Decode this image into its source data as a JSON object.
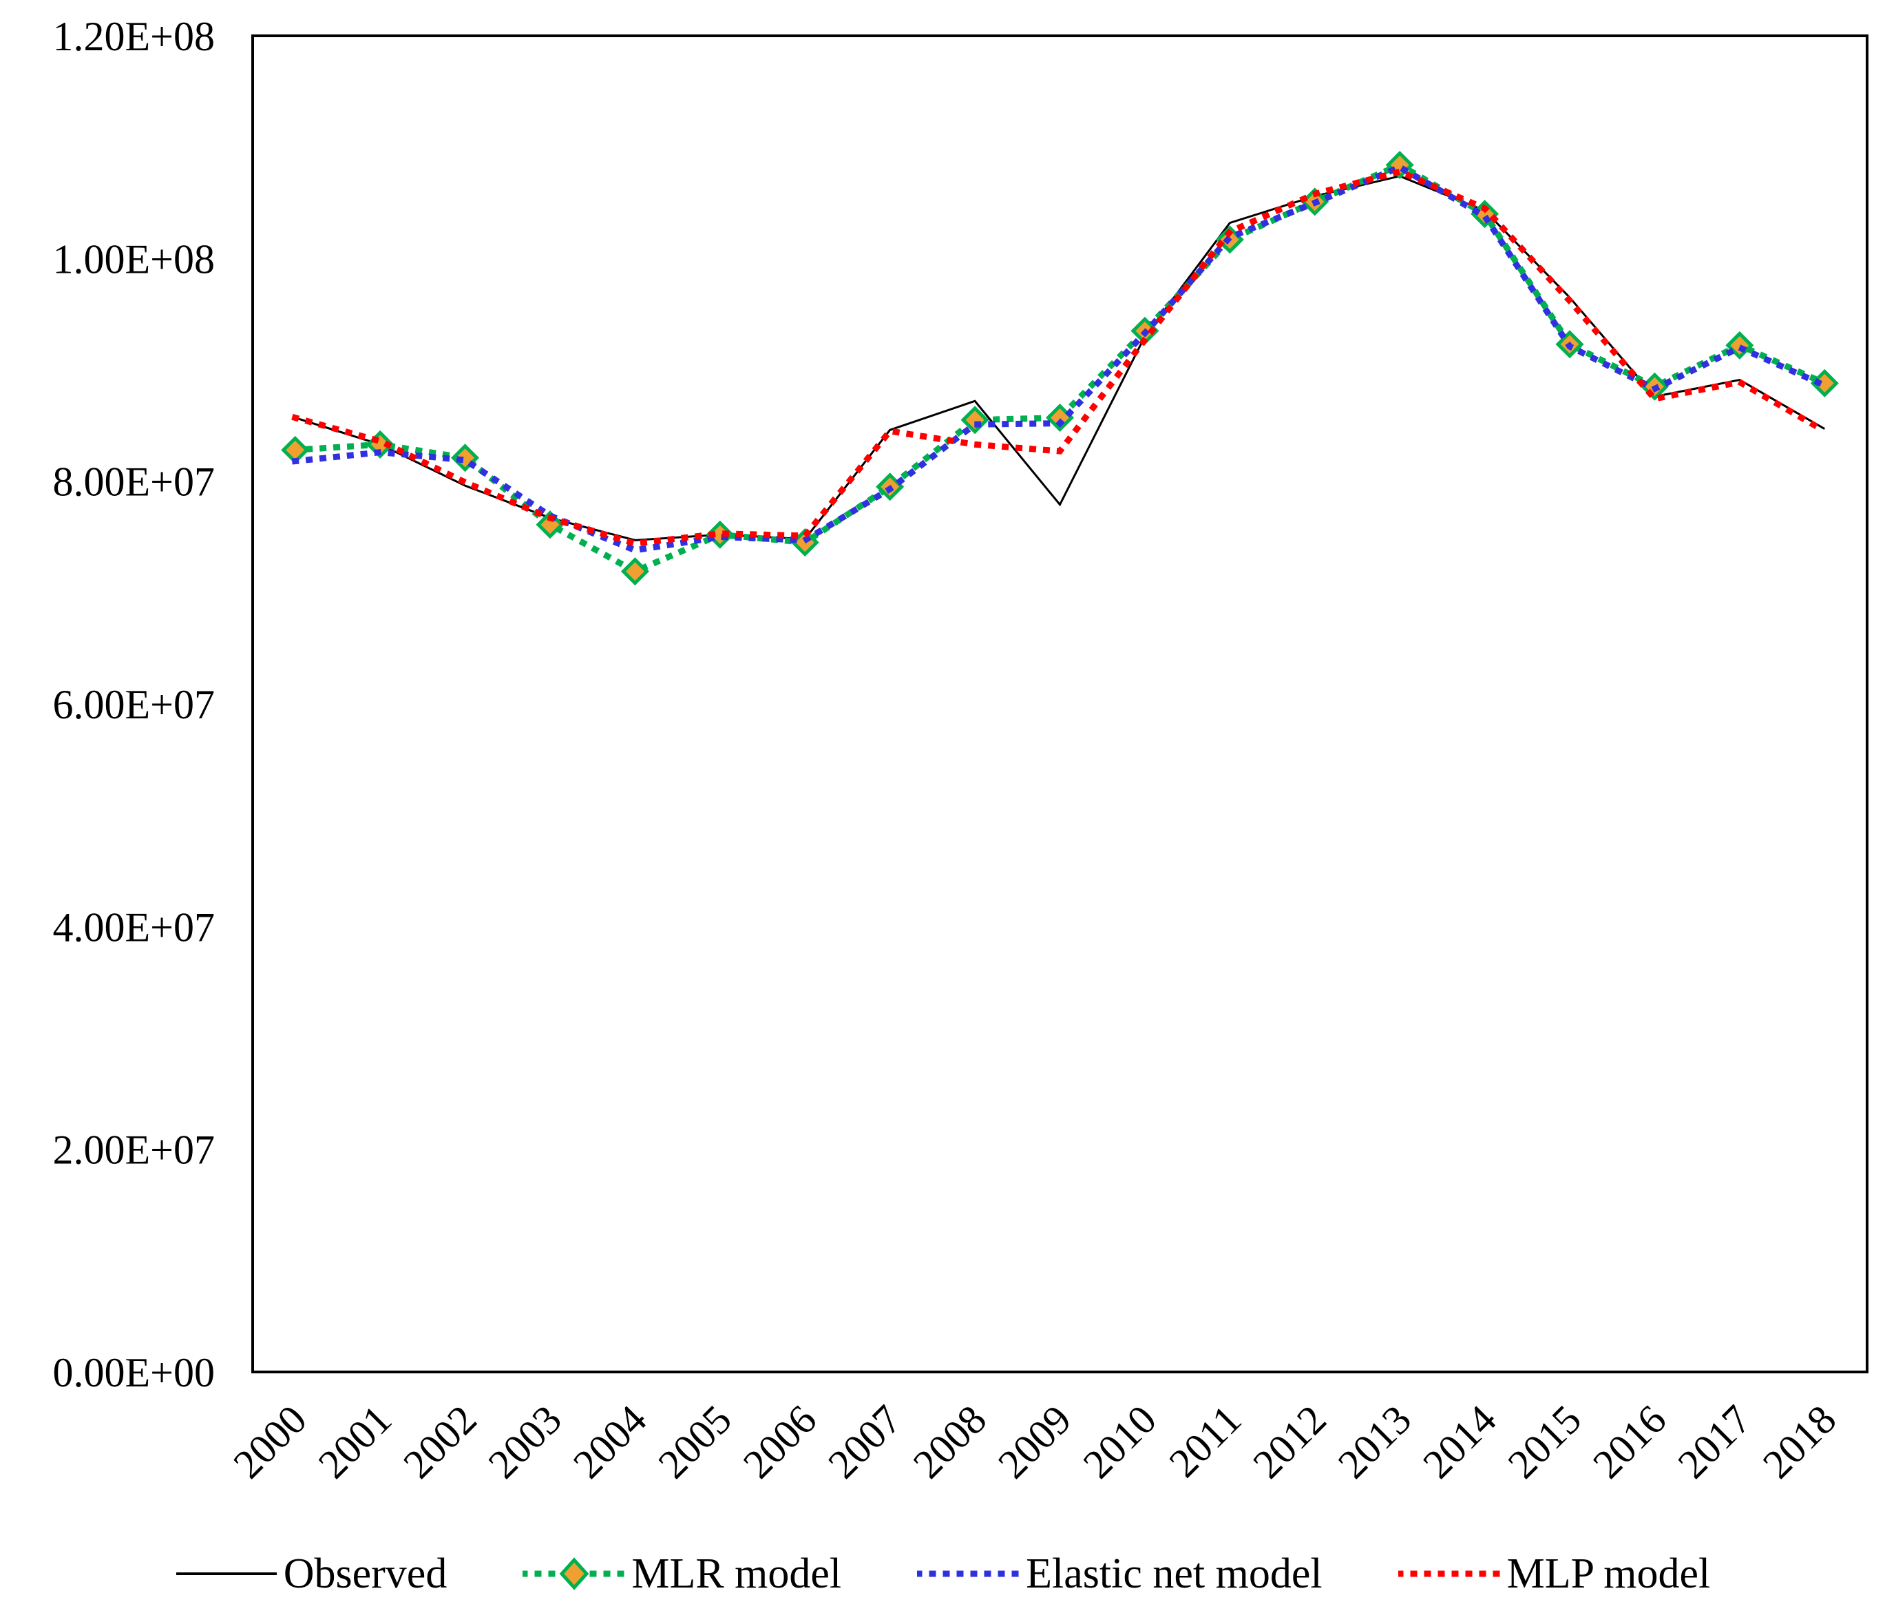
{
  "figure": {
    "background": "#FFFFFF"
  },
  "chart_data": {
    "type": "line",
    "title": "",
    "xlabel": "",
    "ylabel": "",
    "grid": false,
    "legend_position": "bottom",
    "categories": [
      "2000",
      "2001",
      "2002",
      "2003",
      "2004",
      "2005",
      "2006",
      "2007",
      "2008",
      "2009",
      "2010",
      "2011",
      "2012",
      "2013",
      "2014",
      "2015",
      "2016",
      "2017",
      "2018"
    ],
    "ylim": [
      0,
      120000000
    ],
    "y_tick_values": [
      0,
      20000000,
      40000000,
      60000000,
      80000000,
      100000000,
      120000000
    ],
    "y_tick_labels": [
      "0.00E+00",
      "2.00E+07",
      "4.00E+07",
      "6.00E+07",
      "8.00E+07",
      "1.00E+08",
      "1.20E+08"
    ],
    "series": [
      {
        "name": "Observed",
        "color": "#000000",
        "line_style": "solid",
        "marker": "none",
        "values": [
          85700000,
          83300000,
          79600000,
          76700000,
          74700000,
          75200000,
          74800000,
          84600000,
          87200000,
          77900000,
          93000000,
          103200000,
          105600000,
          107400000,
          104300000,
          96500000,
          87600000,
          89100000,
          84700000
        ]
      },
      {
        "name": "MLR model",
        "color": "#00B050",
        "line_style": "dotted",
        "marker": "diamond",
        "marker_fill": "#F0A030",
        "values": [
          82800000,
          83300000,
          82100000,
          76100000,
          71900000,
          75200000,
          74500000,
          79500000,
          85500000,
          85700000,
          93500000,
          101700000,
          105100000,
          108400000,
          104000000,
          92300000,
          88500000,
          92200000,
          88800000
        ]
      },
      {
        "name": "Elastic net model",
        "color": "#3030E0",
        "line_style": "dotted",
        "marker": "none",
        "values": [
          81800000,
          82600000,
          81900000,
          76900000,
          73800000,
          75000000,
          74700000,
          79300000,
          85100000,
          85200000,
          93300000,
          101900000,
          105000000,
          108200000,
          103800000,
          92100000,
          88300000,
          92000000,
          88600000
        ]
      },
      {
        "name": "MLP model",
        "color": "#FF0000",
        "line_style": "dotted",
        "marker": "none",
        "values": [
          85700000,
          83600000,
          79900000,
          76700000,
          74400000,
          75300000,
          75100000,
          84500000,
          83300000,
          82700000,
          92700000,
          102400000,
          105800000,
          107800000,
          104500000,
          96200000,
          87400000,
          88900000,
          84500000
        ]
      }
    ]
  },
  "legend": {
    "items": [
      {
        "label": "Observed"
      },
      {
        "label": "MLR model"
      },
      {
        "label": "Elastic net model"
      },
      {
        "label": "MLP model"
      }
    ]
  }
}
